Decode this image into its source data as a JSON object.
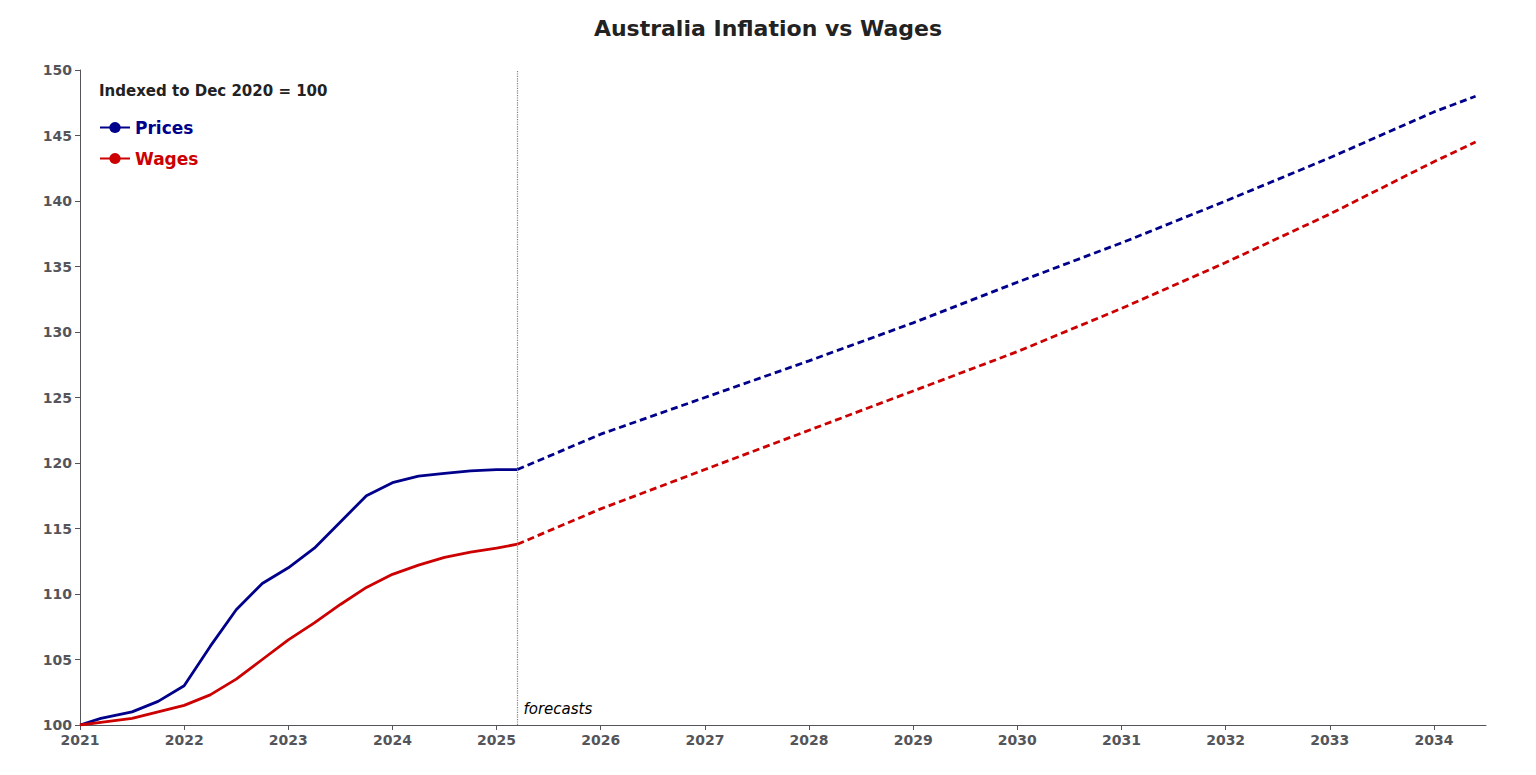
{
  "chart_data": {
    "type": "line",
    "title": "Australia Inflation vs Wages",
    "subtitle": "Indexed to Dec 2020 = 100",
    "xlim": [
      2021.0,
      2034.5
    ],
    "xticks": [
      2021,
      2022,
      2023,
      2024,
      2025,
      2026,
      2027,
      2028,
      2029,
      2030,
      2031,
      2032,
      2033,
      2034
    ],
    "ylim": [
      100,
      150
    ],
    "yticks": [
      100,
      105,
      110,
      115,
      120,
      125,
      130,
      135,
      140,
      145,
      150
    ],
    "grid": false,
    "legend": "upper left",
    "series": [
      {
        "name": "Prices",
        "color": "#00008B",
        "line_style": "solid",
        "x": [
          2021.0,
          2021.2,
          2021.5,
          2021.75,
          2022.0,
          2022.25,
          2022.5,
          2022.75,
          2023.0,
          2023.25,
          2023.5,
          2023.75,
          2024.0,
          2024.25,
          2024.5,
          2024.75,
          2025.0,
          2025.2
        ],
        "values": [
          100.0,
          100.5,
          101.0,
          101.8,
          103.0,
          106.0,
          108.8,
          110.8,
          112.0,
          113.5,
          115.5,
          117.5,
          118.5,
          119.0,
          119.2,
          119.4,
          119.5,
          119.5
        ]
      },
      {
        "name": "Wages",
        "color": "#CC0000",
        "line_style": "solid",
        "x": [
          2021.0,
          2021.2,
          2021.5,
          2021.75,
          2022.0,
          2022.25,
          2022.5,
          2022.75,
          2023.0,
          2023.25,
          2023.5,
          2023.75,
          2024.0,
          2024.25,
          2024.5,
          2024.75,
          2025.0,
          2025.2
        ],
        "values": [
          100.0,
          100.2,
          100.5,
          101.0,
          101.5,
          102.3,
          103.5,
          105.0,
          106.5,
          107.8,
          109.2,
          110.5,
          111.5,
          112.2,
          112.8,
          113.2,
          113.5,
          113.8
        ]
      },
      {
        "name": "Prices",
        "color": "#00008B",
        "line_style": "dashed",
        "x": [
          2025.2,
          2026.0,
          2027.0,
          2028.0,
          2029.0,
          2030.0,
          2031.0,
          2032.0,
          2033.0,
          2034.0,
          2034.4
        ],
        "values": [
          119.5,
          122.2,
          125.0,
          127.8,
          130.7,
          133.8,
          136.8,
          140.0,
          143.3,
          146.8,
          148.0
        ]
      },
      {
        "name": "Wages",
        "color": "#CC0000",
        "line_style": "dashed",
        "x": [
          2025.2,
          2026.0,
          2027.0,
          2028.0,
          2029.0,
          2030.0,
          2031.0,
          2032.0,
          2033.0,
          2034.0,
          2034.4
        ],
        "values": [
          113.8,
          116.5,
          119.5,
          122.5,
          125.5,
          128.5,
          131.8,
          135.3,
          139.0,
          143.0,
          144.5
        ]
      }
    ],
    "annotations": [
      {
        "kind": "vline",
        "x": 2025.2,
        "text": "forecasts",
        "text_y": 101.2
      }
    ]
  }
}
